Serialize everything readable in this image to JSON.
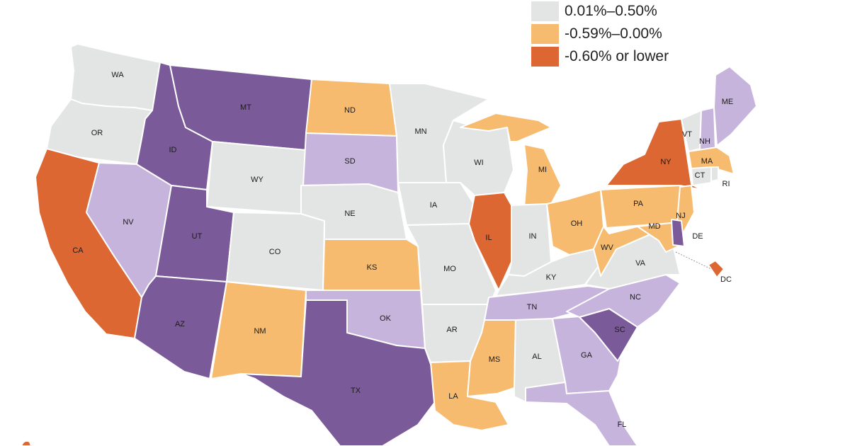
{
  "colors": {
    "purple_dark": "#7b5a9a",
    "purple_light": "#c7b4dc",
    "gray": "#e3e4e4",
    "orange_light": "#f6bb6f",
    "orange_dark": "#dd6733"
  },
  "legend": [
    {
      "label": "0.01%–0.50%",
      "color": "#e3e4e4"
    },
    {
      "label": "-0.59%–0.00%",
      "color": "#f6bb6f"
    },
    {
      "label": "-0.60% or lower",
      "color": "#dd6733"
    }
  ],
  "states": {
    "WA": "WA",
    "OR": "OR",
    "CA": "CA",
    "NV": "NV",
    "ID": "ID",
    "MT": "MT",
    "WY": "WY",
    "UT": "UT",
    "AZ": "AZ",
    "CO": "CO",
    "NM": "NM",
    "ND": "ND",
    "SD": "SD",
    "NE": "NE",
    "KS": "KS",
    "OK": "OK",
    "TX": "TX",
    "MN": "MN",
    "IA": "IA",
    "MO": "MO",
    "AR": "AR",
    "LA": "LA",
    "WI": "WI",
    "IL": "IL",
    "MI": "MI",
    "IN": "IN",
    "OH": "OH",
    "KY": "KY",
    "TN": "TN",
    "MS": "MS",
    "AL": "AL",
    "GA": "GA",
    "FL": "FL",
    "SC": "SC",
    "NC": "NC",
    "VA": "VA",
    "WV": "WV",
    "PA": "PA",
    "NY": "NY",
    "VT": "VT",
    "NH": "NH",
    "ME": "ME",
    "MA": "MA",
    "CT": "CT",
    "RI": "RI",
    "NJ": "NJ",
    "DE": "DE",
    "MD": "MD",
    "DC": "DC"
  }
}
